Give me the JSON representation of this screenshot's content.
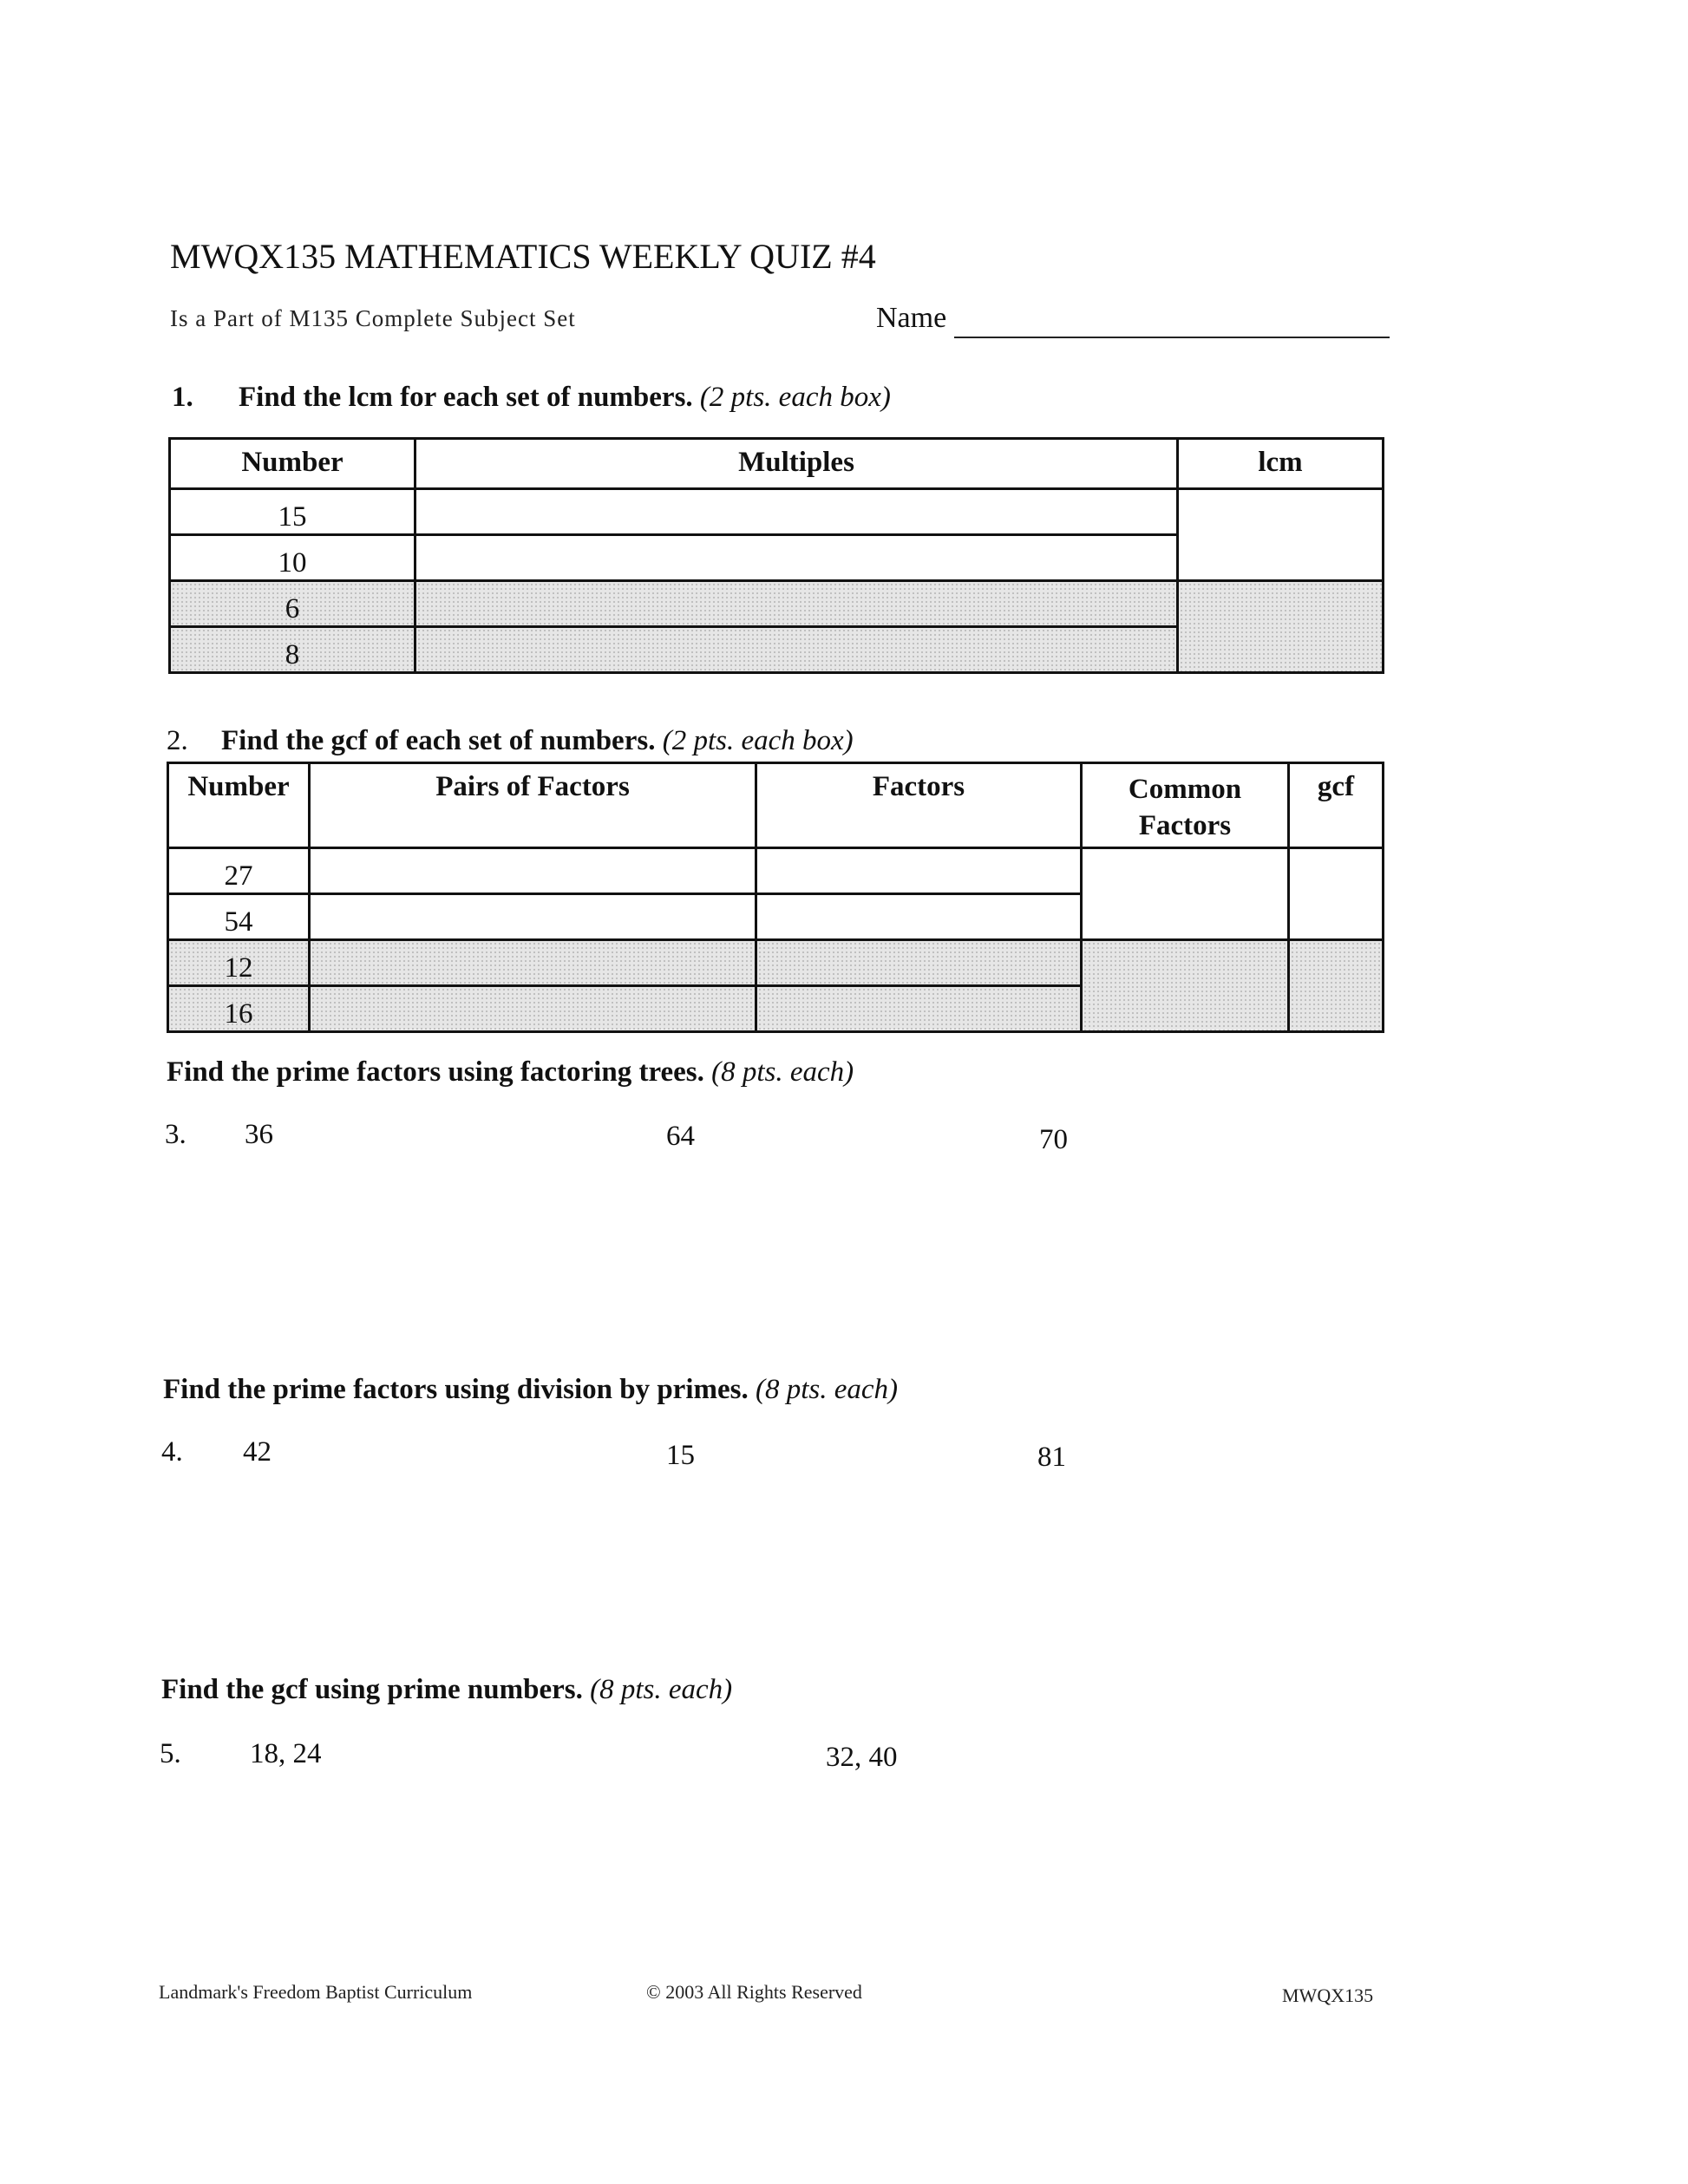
{
  "header": {
    "title": "MWQX135 MATHEMATICS WEEKLY QUIZ #4",
    "subtitle": "Is a Part of M135 Complete Subject Set",
    "name_label": "Name"
  },
  "q1": {
    "number": "1.",
    "text": "Find the lcm for each set of numbers.",
    "points": "(2 pts. each box)",
    "columns": [
      "Number",
      "Multiples",
      "lcm"
    ],
    "rows": [
      "15",
      "10",
      "6",
      "8"
    ]
  },
  "q2": {
    "number": "2.",
    "text": "Find the gcf of each set of numbers.",
    "points": "(2 pts. each box)",
    "columns": [
      "Number",
      "Pairs of Factors",
      "Factors",
      "Common Factors",
      "gcf"
    ],
    "rows": [
      "27",
      "54",
      "12",
      "16"
    ]
  },
  "q3": {
    "heading": "Find the prime factors using factoring trees.",
    "points": "(8 pts. each)",
    "number": "3.",
    "items": [
      "36",
      "64",
      "70"
    ]
  },
  "q4": {
    "heading": "Find the prime factors using division by primes.",
    "points": "(8 pts. each)",
    "number": "4.",
    "items": [
      "42",
      "15",
      "81"
    ]
  },
  "q5": {
    "heading": "Find the gcf using prime numbers.",
    "points": "(8 pts. each)",
    "number": "5.",
    "items": [
      "18, 24",
      "32, 40"
    ]
  },
  "footer": {
    "left": "Landmark's Freedom Baptist Curriculum",
    "center": "© 2003 All Rights Reserved",
    "right": "MWQX135"
  }
}
